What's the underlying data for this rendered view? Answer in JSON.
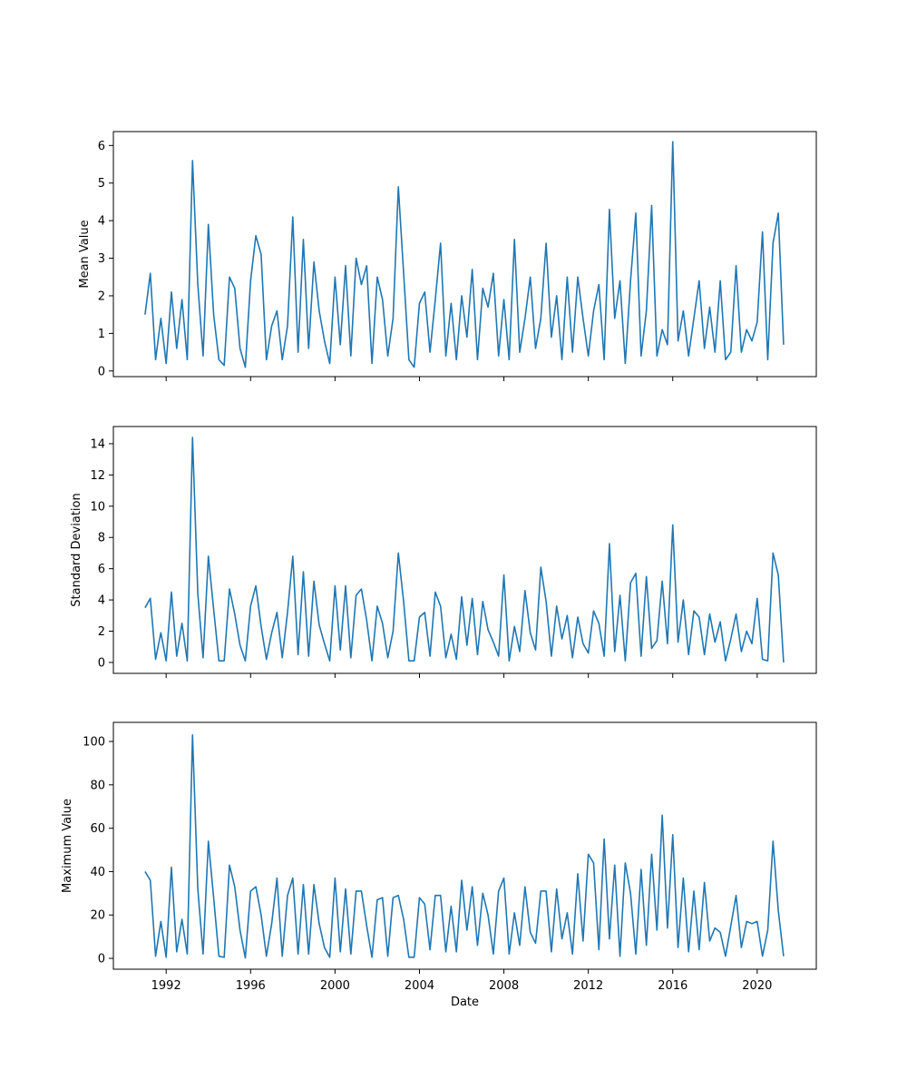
{
  "chart_data": [
    {
      "type": "line",
      "ylabel": "Mean Value",
      "color": "#1f77b4",
      "x": [
        1991.0,
        1991.25,
        1991.5,
        1991.75,
        1992.0,
        1992.25,
        1992.5,
        1992.75,
        1993.0,
        1993.25,
        1993.5,
        1993.75,
        1994.0,
        1994.25,
        1994.5,
        1994.75,
        1995.0,
        1995.25,
        1995.5,
        1995.75,
        1996.0,
        1996.25,
        1996.5,
        1996.75,
        1997.0,
        1997.25,
        1997.5,
        1997.75,
        1998.0,
        1998.25,
        1998.5,
        1998.75,
        1999.0,
        1999.25,
        1999.5,
        1999.75,
        2000.0,
        2000.25,
        2000.5,
        2000.75,
        2001.0,
        2001.25,
        2001.5,
        2001.75,
        2002.0,
        2002.25,
        2002.5,
        2002.75,
        2003.0,
        2003.25,
        2003.5,
        2003.75,
        2004.0,
        2004.25,
        2004.5,
        2004.75,
        2005.0,
        2005.25,
        2005.5,
        2005.75,
        2006.0,
        2006.25,
        2006.5,
        2006.75,
        2007.0,
        2007.25,
        2007.5,
        2007.75,
        2008.0,
        2008.25,
        2008.5,
        2008.75,
        2009.0,
        2009.25,
        2009.5,
        2009.75,
        2010.0,
        2010.25,
        2010.5,
        2010.75,
        2011.0,
        2011.25,
        2011.5,
        2011.75,
        2012.0,
        2012.25,
        2012.5,
        2012.75,
        2013.0,
        2013.25,
        2013.5,
        2013.75,
        2014.0,
        2014.25,
        2014.5,
        2014.75,
        2015.0,
        2015.25,
        2015.5,
        2015.75,
        2016.0,
        2016.25,
        2016.5,
        2016.75,
        2017.0,
        2017.25,
        2017.5,
        2017.75,
        2018.0,
        2018.25,
        2018.5,
        2018.75,
        2019.0,
        2019.25,
        2019.5,
        2019.75,
        2020.0,
        2020.25,
        2020.5,
        2020.75,
        2021.0,
        2021.25
      ],
      "values": [
        1.5,
        2.6,
        0.3,
        1.4,
        0.2,
        2.1,
        0.6,
        1.9,
        0.3,
        5.6,
        2.3,
        0.4,
        3.9,
        1.5,
        0.3,
        0.15,
        2.5,
        2.2,
        0.6,
        0.1,
        2.4,
        3.6,
        3.1,
        0.3,
        1.2,
        1.6,
        0.3,
        1.2,
        4.1,
        0.5,
        3.5,
        0.6,
        2.9,
        1.6,
        0.8,
        0.2,
        2.5,
        0.7,
        2.8,
        0.4,
        3.0,
        2.3,
        2.8,
        0.2,
        2.5,
        1.9,
        0.4,
        1.4,
        4.9,
        2.6,
        0.3,
        0.1,
        1.8,
        2.1,
        0.5,
        1.9,
        3.4,
        0.4,
        1.8,
        0.3,
        2.0,
        0.9,
        2.7,
        0.3,
        2.2,
        1.7,
        2.6,
        0.4,
        1.9,
        0.3,
        3.5,
        0.5,
        1.4,
        2.5,
        0.6,
        1.4,
        3.4,
        0.9,
        2.0,
        0.3,
        2.5,
        0.5,
        2.5,
        1.4,
        0.4,
        1.6,
        2.3,
        0.3,
        4.3,
        1.4,
        2.4,
        0.2,
        2.4,
        4.2,
        0.4,
        1.6,
        4.4,
        0.4,
        1.1,
        0.7,
        6.1,
        0.8,
        1.6,
        0.4,
        1.4,
        2.4,
        0.6,
        1.7,
        0.5,
        2.4,
        0.3,
        0.5,
        2.8,
        0.5,
        1.1,
        0.8,
        1.3,
        3.7,
        0.3,
        3.4,
        4.2,
        0.7
      ],
      "xlim": [
        1989.5,
        2022.8
      ],
      "xticks": [
        1992,
        1996,
        2000,
        2004,
        2008,
        2012,
        2016,
        2020
      ],
      "show_xticklabels": false,
      "ylim": [
        -0.15,
        6.37
      ],
      "yticks": [
        0,
        1,
        2,
        3,
        4,
        5,
        6
      ]
    },
    {
      "type": "line",
      "ylabel": "Standard Deviation",
      "color": "#1f77b4",
      "x": [
        1991.0,
        1991.25,
        1991.5,
        1991.75,
        1992.0,
        1992.25,
        1992.5,
        1992.75,
        1993.0,
        1993.25,
        1993.5,
        1993.75,
        1994.0,
        1994.25,
        1994.5,
        1994.75,
        1995.0,
        1995.25,
        1995.5,
        1995.75,
        1996.0,
        1996.25,
        1996.5,
        1996.75,
        1997.0,
        1997.25,
        1997.5,
        1997.75,
        1998.0,
        1998.25,
        1998.5,
        1998.75,
        1999.0,
        1999.25,
        1999.5,
        1999.75,
        2000.0,
        2000.25,
        2000.5,
        2000.75,
        2001.0,
        2001.25,
        2001.5,
        2001.75,
        2002.0,
        2002.25,
        2002.5,
        2002.75,
        2003.0,
        2003.25,
        2003.5,
        2003.75,
        2004.0,
        2004.25,
        2004.5,
        2004.75,
        2005.0,
        2005.25,
        2005.5,
        2005.75,
        2006.0,
        2006.25,
        2006.5,
        2006.75,
        2007.0,
        2007.25,
        2007.5,
        2007.75,
        2008.0,
        2008.25,
        2008.5,
        2008.75,
        2009.0,
        2009.25,
        2009.5,
        2009.75,
        2010.0,
        2010.25,
        2010.5,
        2010.75,
        2011.0,
        2011.25,
        2011.5,
        2011.75,
        2012.0,
        2012.25,
        2012.5,
        2012.75,
        2013.0,
        2013.25,
        2013.5,
        2013.75,
        2014.0,
        2014.25,
        2014.5,
        2014.75,
        2015.0,
        2015.25,
        2015.5,
        2015.75,
        2016.0,
        2016.25,
        2016.5,
        2016.75,
        2017.0,
        2017.25,
        2017.5,
        2017.75,
        2018.0,
        2018.25,
        2018.5,
        2018.75,
        2019.0,
        2019.25,
        2019.5,
        2019.75,
        2020.0,
        2020.25,
        2020.5,
        2020.75,
        2021.0,
        2021.25
      ],
      "values": [
        3.5,
        4.1,
        0.2,
        1.9,
        0.1,
        4.5,
        0.4,
        2.5,
        0.1,
        14.4,
        4.4,
        0.3,
        6.8,
        3.4,
        0.1,
        0.1,
        4.7,
        3.1,
        1.1,
        0.1,
        3.6,
        4.9,
        2.3,
        0.2,
        1.9,
        3.2,
        0.3,
        3.2,
        6.8,
        0.5,
        5.8,
        0.4,
        5.2,
        2.4,
        1.2,
        0.1,
        4.9,
        0.8,
        4.9,
        0.3,
        4.3,
        4.7,
        2.7,
        0.1,
        3.6,
        2.5,
        0.3,
        2.0,
        7.0,
        3.9,
        0.1,
        0.1,
        2.9,
        3.2,
        0.4,
        4.5,
        3.6,
        0.3,
        1.8,
        0.2,
        4.2,
        1.1,
        4.1,
        0.5,
        3.9,
        2.1,
        1.3,
        0.4,
        5.6,
        0.1,
        2.3,
        0.7,
        4.6,
        1.9,
        0.8,
        6.1,
        3.9,
        0.4,
        3.6,
        1.5,
        3.0,
        0.3,
        2.9,
        1.2,
        0.6,
        3.3,
        2.5,
        0.4,
        7.6,
        0.7,
        4.3,
        0.1,
        5.1,
        5.7,
        0.4,
        5.5,
        0.9,
        1.4,
        5.2,
        1.2,
        8.8,
        1.3,
        4.0,
        0.5,
        3.3,
        2.9,
        0.5,
        3.1,
        1.3,
        2.6,
        0.1,
        1.5,
        3.1,
        0.7,
        2.0,
        1.2,
        4.1,
        0.2,
        0.1,
        7.0,
        5.6,
        0.0
      ],
      "xlim": [
        1989.5,
        2022.8
      ],
      "xticks": [
        1992,
        1996,
        2000,
        2004,
        2008,
        2012,
        2016,
        2020
      ],
      "show_xticklabels": false,
      "ylim": [
        -0.7,
        15.1
      ],
      "yticks": [
        0,
        2,
        4,
        6,
        8,
        10,
        12,
        14
      ]
    },
    {
      "type": "line",
      "ylabel": "Maximum Value",
      "xlabel": "Date",
      "color": "#1f77b4",
      "x": [
        1991.0,
        1991.25,
        1991.5,
        1991.75,
        1992.0,
        1992.25,
        1992.5,
        1992.75,
        1993.0,
        1993.25,
        1993.5,
        1993.75,
        1994.0,
        1994.25,
        1994.5,
        1994.75,
        1995.0,
        1995.25,
        1995.5,
        1995.75,
        1996.0,
        1996.25,
        1996.5,
        1996.75,
        1997.0,
        1997.25,
        1997.5,
        1997.75,
        1998.0,
        1998.25,
        1998.5,
        1998.75,
        1999.0,
        1999.25,
        1999.5,
        1999.75,
        2000.0,
        2000.25,
        2000.5,
        2000.75,
        2001.0,
        2001.25,
        2001.5,
        2001.75,
        2002.0,
        2002.25,
        2002.5,
        2002.75,
        2003.0,
        2003.25,
        2003.5,
        2003.75,
        2004.0,
        2004.25,
        2004.5,
        2004.75,
        2005.0,
        2005.25,
        2005.5,
        2005.75,
        2006.0,
        2006.25,
        2006.5,
        2006.75,
        2007.0,
        2007.25,
        2007.5,
        2007.75,
        2008.0,
        2008.25,
        2008.5,
        2008.75,
        2009.0,
        2009.25,
        2009.5,
        2009.75,
        2010.0,
        2010.25,
        2010.5,
        2010.75,
        2011.0,
        2011.25,
        2011.5,
        2011.75,
        2012.0,
        2012.25,
        2012.5,
        2012.75,
        2013.0,
        2013.25,
        2013.5,
        2013.75,
        2014.0,
        2014.25,
        2014.5,
        2014.75,
        2015.0,
        2015.25,
        2015.5,
        2015.75,
        2016.0,
        2016.25,
        2016.5,
        2016.75,
        2017.0,
        2017.25,
        2017.5,
        2017.75,
        2018.0,
        2018.25,
        2018.5,
        2018.75,
        2019.0,
        2019.25,
        2019.5,
        2019.75,
        2020.0,
        2020.25,
        2020.5,
        2020.75,
        2021.0,
        2021.25
      ],
      "values": [
        40,
        36,
        1,
        17,
        0.5,
        42,
        3,
        18,
        2,
        103,
        32,
        2,
        54,
        28,
        1,
        0.5,
        43,
        33,
        13,
        0.2,
        31,
        33,
        20,
        1,
        16,
        37,
        1,
        29,
        37,
        2,
        34,
        2,
        34,
        16,
        5,
        0.5,
        37,
        3,
        32,
        2,
        31,
        31,
        15,
        0.5,
        27,
        28,
        1,
        28,
        29,
        18,
        0.5,
        0.5,
        28,
        25,
        4,
        29,
        29,
        3,
        24,
        3,
        36,
        13,
        33,
        6,
        30,
        20,
        2,
        31,
        37,
        2,
        21,
        6,
        33,
        12,
        7,
        31,
        31,
        3,
        32,
        9,
        21,
        2,
        39,
        8,
        48,
        44,
        4,
        55,
        9,
        43,
        1,
        44,
        30,
        2,
        41,
        6,
        48,
        13,
        66,
        14,
        57,
        5,
        37,
        3,
        31,
        4,
        35,
        8,
        14,
        12,
        1,
        15,
        29,
        5,
        17,
        16,
        17,
        1,
        13,
        54,
        22,
        1
      ],
      "xlim": [
        1989.5,
        2022.8
      ],
      "xticks": [
        1992,
        1996,
        2000,
        2004,
        2008,
        2012,
        2016,
        2020
      ],
      "show_xticklabels": true,
      "ylim": [
        -5,
        108.8
      ],
      "yticks": [
        0,
        20,
        40,
        60,
        80,
        100
      ]
    }
  ]
}
